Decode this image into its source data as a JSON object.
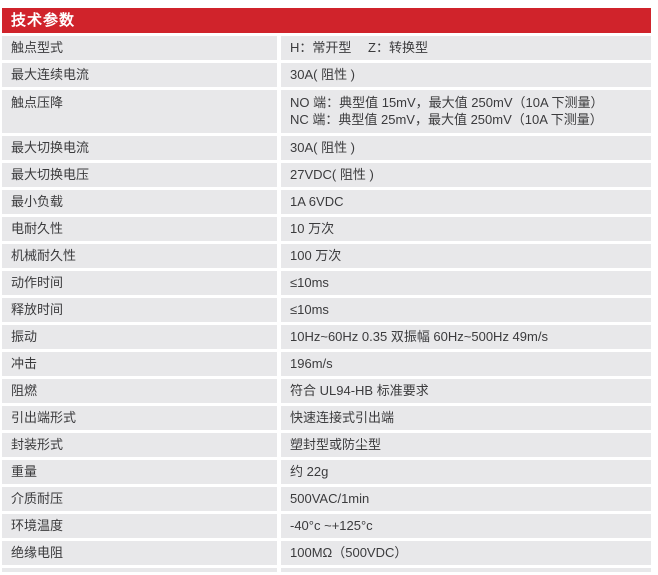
{
  "header": {
    "title": "技术参数"
  },
  "colors": {
    "accent_red": "#d0232b",
    "row_bg": "#e8e8ea",
    "text": "#3b3b3d"
  },
  "rows": [
    {
      "label": "触点型式",
      "value": "H：常开型　 Z：转换型"
    },
    {
      "label": "最大连续电流",
      "value": "30A( 阻性 )"
    },
    {
      "label": "触点压降",
      "value": "NO 端：典型值 15mV，最大值 250mV（10A 下测量）",
      "value2": "NC 端：典型值 25mV，最大值 250mV（10A 下测量）"
    },
    {
      "label": "最大切换电流",
      "value": "30A( 阻性 )"
    },
    {
      "label": "最大切换电压",
      "value": "27VDC( 阻性 )"
    },
    {
      "label": "最小负载",
      "value": "1A 6VDC"
    },
    {
      "label": "电耐久性",
      "value": "10 万次"
    },
    {
      "label": "机械耐久性",
      "value": "100 万次"
    },
    {
      "label": "动作时间",
      "value": "≤10ms"
    },
    {
      "label": "释放时间",
      "value": "≤10ms"
    },
    {
      "label": "振动",
      "value": "10Hz~60Hz 0.35 双振幅 60Hz~500Hz 49m/s"
    },
    {
      "label": "冲击",
      "value": "196m/s"
    },
    {
      "label": "阻燃",
      "value": "符合 UL94-HB 标准要求"
    },
    {
      "label": "引出端形式",
      "value": "快速连接式引出端"
    },
    {
      "label": "封装形式",
      "value": "塑封型或防尘型"
    },
    {
      "label": "重量",
      "value": "约 22g"
    },
    {
      "label": "介质耐压",
      "value": "500VAC/1min"
    },
    {
      "label": "环境温度",
      "value": "-40°c ~+125°c"
    },
    {
      "label": "绝缘电阻",
      "value": "100MΩ（500VDC）"
    }
  ]
}
